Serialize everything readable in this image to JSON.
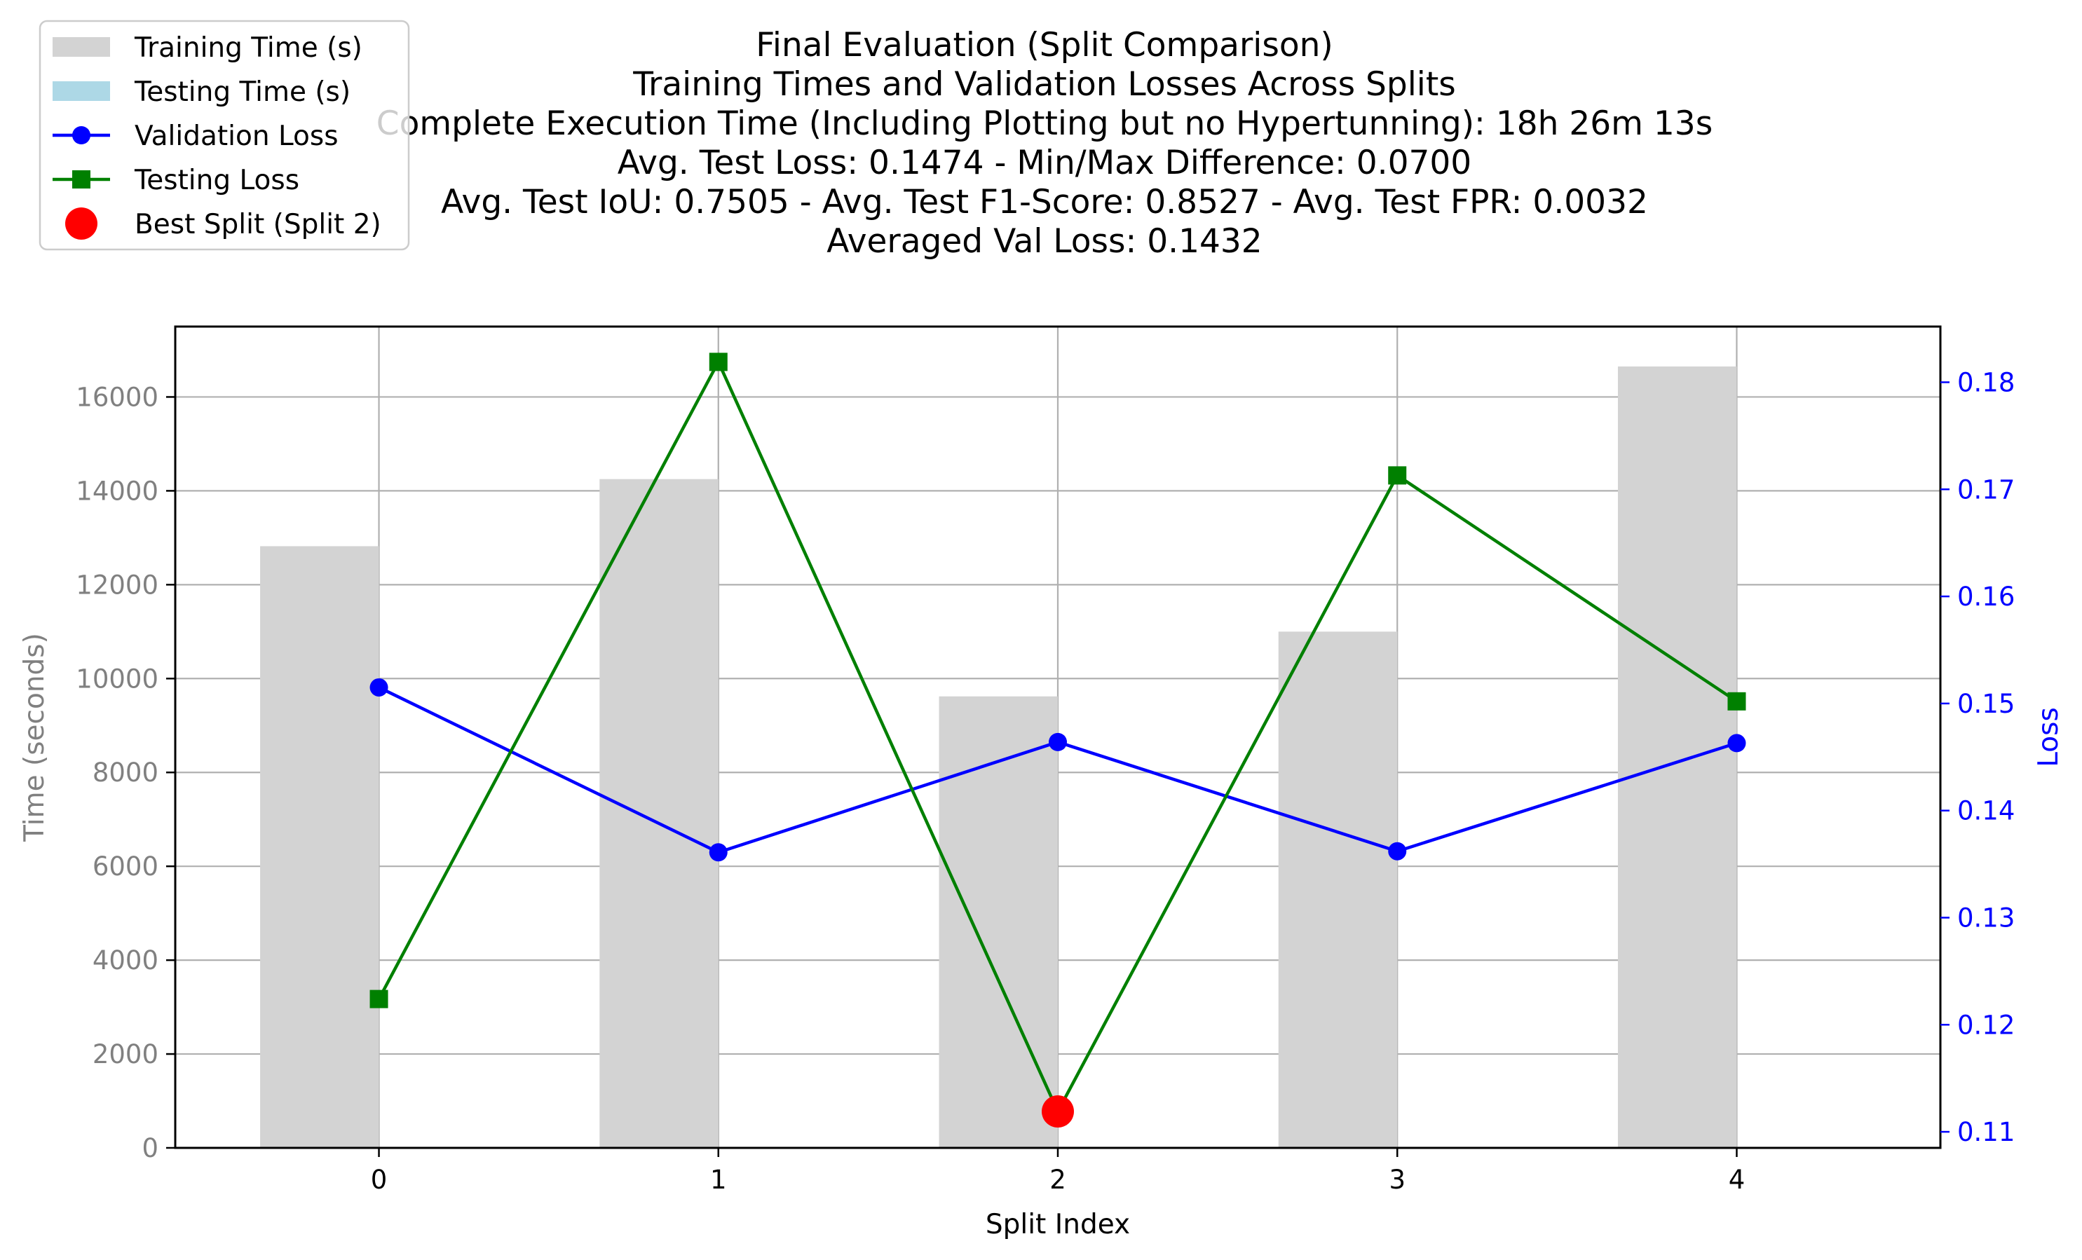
{
  "chart_data": {
    "type": "bar",
    "title_lines": [
      "Final Evaluation (Split Comparison)",
      "Training Times and Validation Losses Across Splits",
      "Complete Execution Time (Including Plotting but no Hypertunning): 18h 26m 13s",
      "Avg. Test Loss: 0.1474 - Min/Max Difference: 0.0700",
      "Avg. Test IoU: 0.7505 - Avg. Test F1-Score: 0.8527 - Avg. Test FPR: 0.0032",
      "Averaged Val Loss: 0.1432"
    ],
    "xlabel": "Split Index",
    "ylabel_left": "Time (seconds)",
    "ylabel_right": "Loss",
    "categories": [
      0,
      1,
      2,
      3,
      4
    ],
    "x_ticks": [
      "0",
      "1",
      "2",
      "3",
      "4"
    ],
    "xlim": [
      -0.6,
      4.6
    ],
    "ylim_left": [
      0,
      17500
    ],
    "ylim_right": [
      0.1085,
      0.1852
    ],
    "yticks_left": [
      0,
      2000,
      4000,
      6000,
      8000,
      10000,
      12000,
      14000,
      16000
    ],
    "yticks_right": [
      0.11,
      0.12,
      0.13,
      0.14,
      0.15,
      0.16,
      0.17,
      0.18
    ],
    "grid": true,
    "legend_position": "upper-left",
    "series": [
      {
        "name": "Training Time (s)",
        "kind": "bar",
        "axis": "left",
        "color": "#d3d3d3",
        "values": [
          12820,
          14250,
          9620,
          11000,
          16650
        ]
      },
      {
        "name": "Testing Time (s)",
        "kind": "bar",
        "axis": "left",
        "color": "#add8e6",
        "values": [
          0,
          0,
          0,
          0,
          0
        ]
      },
      {
        "name": "Validation Loss",
        "kind": "line",
        "axis": "right",
        "color": "#0000ff",
        "marker": "circle",
        "values": [
          0.1515,
          0.1361,
          0.1464,
          0.1362,
          0.1463
        ]
      },
      {
        "name": "Testing Loss",
        "kind": "line",
        "axis": "right",
        "color": "#008000",
        "marker": "square",
        "values": [
          0.1224,
          0.1819,
          0.1119,
          0.1713,
          0.1502
        ]
      }
    ],
    "best_split": {
      "name": "Best Split (Split 2)",
      "x": 2,
      "y": 0.1119,
      "color": "#ff0000"
    },
    "colors": {
      "left_axis": "#808080",
      "right_axis": "#0000ff",
      "grid": "#b0b0b0"
    }
  }
}
